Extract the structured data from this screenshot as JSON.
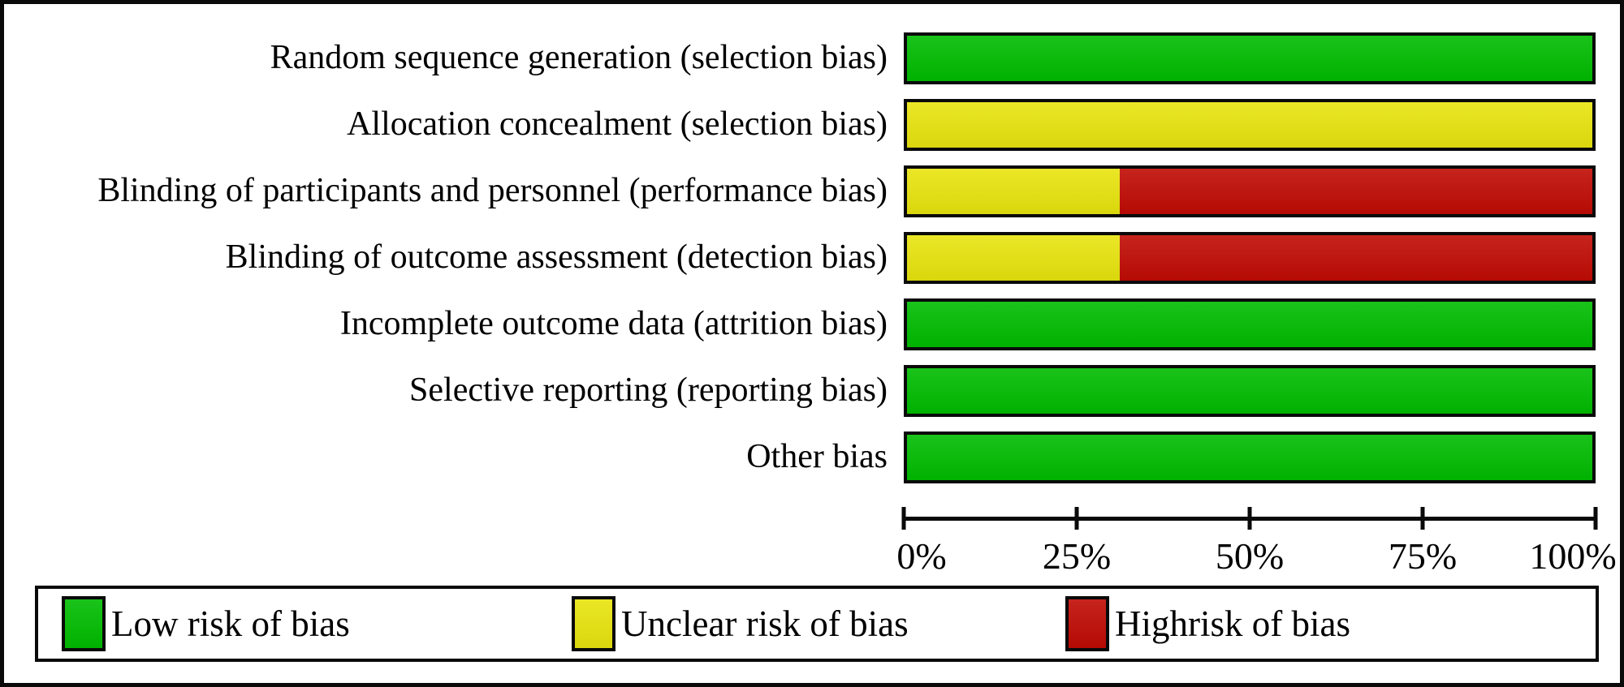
{
  "chart_data": {
    "type": "bar",
    "orientation": "horizontal",
    "stacked": true,
    "title": "",
    "xlabel": "",
    "ylabel": "",
    "categories": [
      "Random sequence generation (selection bias)",
      "Allocation concealment (selection bias)",
      "Blinding of participants and personnel (performance bias)",
      "Blinding of outcome assessment (detection bias)",
      "Incomplete outcome data (attrition bias)",
      "Selective reporting (reporting bias)",
      "Other bias"
    ],
    "series": [
      {
        "name": "Low risk of bias",
        "color": "#00BC00",
        "values": [
          100,
          0,
          0,
          0,
          100,
          100,
          100
        ]
      },
      {
        "name": "Unclear risk of bias",
        "color": "#E8E40E",
        "values": [
          0,
          100,
          31,
          31,
          0,
          0,
          0
        ]
      },
      {
        "name": "Highrisk of bias",
        "color": "#C00B04",
        "values": [
          0,
          0,
          69,
          69,
          0,
          0,
          0
        ]
      }
    ],
    "x_axis": {
      "ticks": [
        "0%",
        "25%",
        "50%",
        "75%",
        "100%"
      ],
      "tick_values": [
        0,
        25,
        50,
        75,
        100
      ],
      "range": [
        0,
        100
      ],
      "grid": false
    },
    "legend_position": "bottom"
  },
  "legend": {
    "items": [
      {
        "label": "Low risk of bias",
        "color": "#00BC00"
      },
      {
        "label": "Unclear risk of bias",
        "color": "#E8E40E"
      },
      {
        "label": "Highrisk of bias",
        "color": "#C00B04"
      }
    ]
  },
  "colors": {
    "low_risk": "#00BC00",
    "unclear_risk": "#E8E40E",
    "high_risk": "#C00B04",
    "border": "#0A0A0A",
    "background": "#FFFFFF"
  }
}
